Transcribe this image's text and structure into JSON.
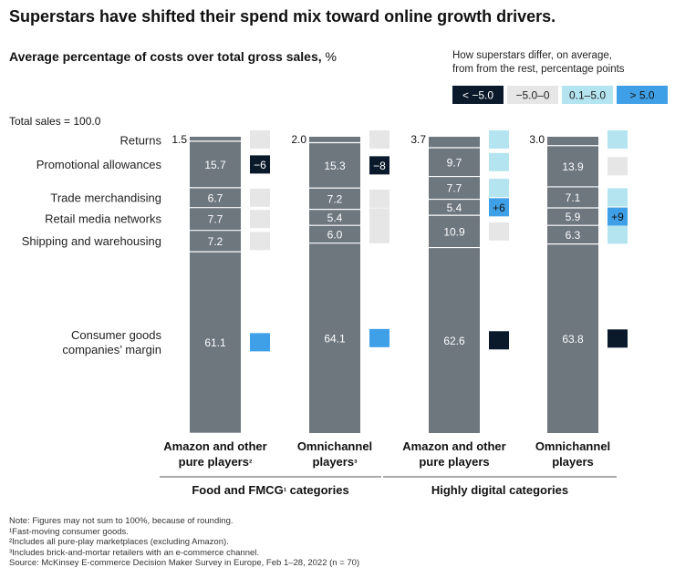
{
  "title": "Superstars have shifted their spend mix toward online growth drivers.",
  "subtitle": "Average percentage of costs over total gross sales,",
  "subtitle_unit": "%",
  "total_label": "Total sales = 100.0",
  "legend": {
    "title_line1": "How superstars differ, on average,",
    "title_line2": "from from the rest, percentage points",
    "items": [
      {
        "label": "< −5.0",
        "color": "#0a1a2a",
        "text_color": "#ffffff"
      },
      {
        "label": "−5.0–0",
        "color": "#e6e6e6",
        "text_color": "#222222"
      },
      {
        "label": "0.1–5.0",
        "color": "#b3e4ef",
        "text_color": "#222222"
      },
      {
        "label": "> 5.0",
        "color": "#3fa0e8",
        "text_color": "#111111"
      }
    ]
  },
  "chart_data": {
    "type": "stacked-bar",
    "unit": "%",
    "total": 100.0,
    "segments": [
      "Returns",
      "Promotional allowances",
      "Trade merchandising",
      "Retail media networks",
      "Shipping and warehousing",
      "Consumer goods companies’ margin"
    ],
    "segment_label_lines": [
      [
        "Returns"
      ],
      [
        "Promotional allowances"
      ],
      [
        "Trade merchandising"
      ],
      [
        "Retail media networks"
      ],
      [
        "Shipping and warehousing"
      ],
      [
        "Consumer goods",
        "companies’ margin"
      ]
    ],
    "groups": [
      {
        "label": "Food and FMCG¹ categories",
        "columns": [
          0,
          1
        ]
      },
      {
        "label": "Highly digital categories",
        "columns": [
          2,
          3
        ]
      }
    ],
    "columns": [
      {
        "label_lines": [
          "Amazon and other",
          "pure players²"
        ],
        "values": [
          1.5,
          15.7,
          6.7,
          7.7,
          7.2,
          61.1
        ],
        "value_labels": [
          "1.5",
          "15.7",
          "6.7",
          "7.7",
          "7.2",
          "61.1"
        ],
        "diff_category": [
          1,
          0,
          1,
          1,
          1,
          3
        ],
        "diff_labels": [
          "",
          "−6",
          "",
          "",
          "",
          ""
        ]
      },
      {
        "label_lines": [
          "Omnichannel",
          "players³"
        ],
        "values": [
          2.0,
          15.3,
          7.2,
          5.4,
          6.0,
          64.1
        ],
        "value_labels": [
          "2.0",
          "15.3",
          "7.2",
          "5.4",
          "6.0",
          "64.1"
        ],
        "diff_category": [
          1,
          0,
          1,
          1,
          1,
          3
        ],
        "diff_labels": [
          "",
          "−8",
          "",
          "",
          "",
          ""
        ]
      },
      {
        "label_lines": [
          "Amazon and other",
          "pure players"
        ],
        "values": [
          3.7,
          9.7,
          7.7,
          5.4,
          10.9,
          62.6
        ],
        "value_labels": [
          "3.7",
          "9.7",
          "7.7",
          "5.4",
          "10.9",
          "62.6"
        ],
        "diff_category": [
          2,
          2,
          2,
          3,
          1,
          0
        ],
        "diff_labels": [
          "",
          "",
          "",
          "+6",
          "",
          ""
        ]
      },
      {
        "label_lines": [
          "Omnichannel",
          "players"
        ],
        "values": [
          3.0,
          13.9,
          7.1,
          5.9,
          6.3,
          63.8
        ],
        "value_labels": [
          "3.0",
          "13.9",
          "7.1",
          "5.9",
          "6.3",
          "63.8"
        ],
        "diff_category": [
          2,
          1,
          2,
          3,
          2,
          0
        ],
        "diff_labels": [
          "",
          "",
          "",
          "+9",
          "",
          ""
        ]
      }
    ]
  },
  "footnotes": [
    "Note: Figures may not sum to 100%, because of rounding.",
    "¹Fast-moving consumer goods.",
    "²Includes all pure-play marketplaces (excluding Amazon).",
    "³Includes brick-and-mortar retailers with an e-commerce channel.",
    "Source: McKinsey E-commerce Decision Maker Survey in Europe, Feb 1–28, 2022 (n = 70)"
  ],
  "colors": {
    "bar": "#6e767e",
    "divider": "#ffffff",
    "text": "#111111"
  }
}
